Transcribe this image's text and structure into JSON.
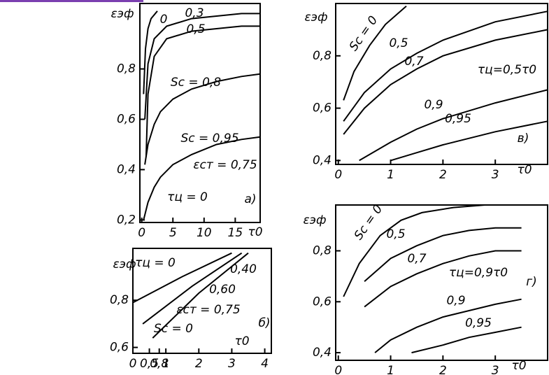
{
  "chart_data": [
    {
      "type": "line",
      "panel_label": "а)",
      "y_label": "εэф",
      "x_label": "τ0",
      "xlim": [
        -0.3,
        19
      ],
      "ylim": [
        0.19,
        1.06
      ],
      "xticks": [
        0,
        5,
        10,
        15
      ],
      "yticks": [
        {
          "value": 0.2,
          "label": "0,2"
        },
        {
          "value": 0.4,
          "label": "0,4"
        },
        {
          "value": 0.6,
          "label": "0,6"
        },
        {
          "value": 0.8,
          "label": "0,8"
        }
      ],
      "series": [
        {
          "name": "0",
          "color": "#000",
          "x": [
            0.3,
            0.6,
            1,
            1.5,
            2.5
          ],
          "values": [
            0.7,
            0.88,
            0.96,
            1.0,
            1.03
          ]
        },
        {
          "name": "0,3",
          "color": "#000",
          "x": [
            0.5,
            1,
            2,
            4,
            8,
            12,
            16,
            19
          ],
          "values": [
            0.6,
            0.82,
            0.92,
            0.97,
            1.0,
            1.01,
            1.02,
            1.02
          ]
        },
        {
          "name": "0,5",
          "color": "#000",
          "x": [
            0.7,
            1,
            2,
            4,
            8,
            12,
            16,
            19
          ],
          "values": [
            0.45,
            0.7,
            0.85,
            0.92,
            0.95,
            0.96,
            0.97,
            0.97
          ]
        },
        {
          "name": "Sc = 0,8",
          "color": "#000",
          "x": [
            0.5,
            1,
            2,
            3,
            5,
            8,
            12,
            16,
            19
          ],
          "values": [
            0.42,
            0.5,
            0.58,
            0.63,
            0.68,
            0.72,
            0.75,
            0.77,
            0.78
          ]
        },
        {
          "name": "Sc = 0,95",
          "color": "#000",
          "x": [
            0.3,
            1,
            2,
            3,
            5,
            8,
            12,
            16,
            19
          ],
          "values": [
            0.2,
            0.27,
            0.33,
            0.37,
            0.42,
            0.46,
            0.5,
            0.52,
            0.53
          ]
        }
      ],
      "annotations": [
        "εст = 0,75",
        "τц = 0"
      ]
    },
    {
      "type": "line",
      "panel_label": "б)",
      "y_label": "εэф",
      "x_label": "τ0",
      "xlim": [
        0,
        4.2
      ],
      "ylim": [
        0.575,
        1.02
      ],
      "xticks": [
        0,
        {
          "value": 0.5,
          "label": "0,5"
        },
        {
          "value": 0.8,
          "label": "0,8"
        },
        1,
        2,
        3,
        4
      ],
      "yticks": [
        {
          "value": 0.6,
          "label": "0,6"
        },
        {
          "value": 0.8,
          "label": "0,8"
        }
      ],
      "series": [
        {
          "name": "τц = 0",
          "color": "#000",
          "x": [
            0,
            1.5,
            3.0
          ],
          "values": [
            0.79,
            0.9,
            1.0
          ]
        },
        {
          "name": "0,40",
          "color": "#000",
          "x": [
            0.3,
            1.8,
            3.3
          ],
          "values": [
            0.7,
            0.86,
            1.0
          ]
        },
        {
          "name": "0,60",
          "color": "#000",
          "x": [
            0.6,
            2.0,
            3.5
          ],
          "values": [
            0.64,
            0.83,
            1.0
          ]
        }
      ],
      "annotations": [
        "εст = 0,75",
        "Sc = 0"
      ]
    },
    {
      "type": "line",
      "panel_label": "в)",
      "y_label": "εэф",
      "x_label": "τ0",
      "xlim": [
        -0.05,
        4.0
      ],
      "ylim": [
        0.385,
        1.0
      ],
      "xticks": [
        0,
        1,
        2,
        3
      ],
      "yticks": [
        {
          "value": 0.4,
          "label": "0,4"
        },
        {
          "value": 0.6,
          "label": "0,6"
        },
        {
          "value": 0.8,
          "label": "0,8"
        }
      ],
      "series": [
        {
          "name": "Sc = 0",
          "color": "#000",
          "x": [
            0.1,
            0.3,
            0.6,
            0.9,
            1.3
          ],
          "values": [
            0.63,
            0.74,
            0.84,
            0.92,
            0.99
          ]
        },
        {
          "name": "0,5",
          "color": "#000",
          "x": [
            0.1,
            0.5,
            1,
            1.5,
            2,
            3,
            4
          ],
          "values": [
            0.55,
            0.66,
            0.75,
            0.81,
            0.86,
            0.93,
            0.97
          ]
        },
        {
          "name": "0,7",
          "color": "#000",
          "x": [
            0.1,
            0.5,
            1,
            1.5,
            2,
            3,
            4
          ],
          "values": [
            0.5,
            0.6,
            0.69,
            0.75,
            0.8,
            0.86,
            0.9
          ]
        },
        {
          "name": "0,9",
          "color": "#000",
          "x": [
            0.4,
            1,
            1.5,
            2,
            3,
            4
          ],
          "values": [
            0.4,
            0.47,
            0.52,
            0.56,
            0.62,
            0.67
          ]
        },
        {
          "name": "0,95",
          "color": "#000",
          "x": [
            1,
            1.5,
            2,
            3,
            4
          ],
          "values": [
            0.4,
            0.43,
            0.46,
            0.51,
            0.55
          ]
        }
      ],
      "annotations": [
        "τц=0,5τ0"
      ]
    },
    {
      "type": "line",
      "panel_label": "г)",
      "y_label": "εэф",
      "x_label": "τ0",
      "xlim": [
        -0.05,
        4.0
      ],
      "ylim": [
        0.37,
        0.98
      ],
      "xticks": [
        0,
        1,
        2,
        3
      ],
      "yticks": [
        {
          "value": 0.4,
          "label": "0,4"
        },
        {
          "value": 0.6,
          "label": "0,6"
        },
        {
          "value": 0.8,
          "label": "0,8"
        }
      ],
      "series": [
        {
          "name": "Sc = 0",
          "color": "#000",
          "x": [
            0.1,
            0.4,
            0.8,
            1.2,
            1.6,
            2.2,
            2.8
          ],
          "values": [
            0.62,
            0.75,
            0.86,
            0.92,
            0.95,
            0.97,
            0.98
          ]
        },
        {
          "name": "0,5",
          "color": "#000",
          "x": [
            0.5,
            1,
            1.5,
            2,
            2.5,
            3,
            3.5
          ],
          "values": [
            0.68,
            0.77,
            0.82,
            0.86,
            0.88,
            0.89,
            0.89
          ]
        },
        {
          "name": "0,7",
          "color": "#000",
          "x": [
            0.5,
            1,
            1.5,
            2,
            2.5,
            3,
            3.5
          ],
          "values": [
            0.58,
            0.66,
            0.71,
            0.75,
            0.78,
            0.8,
            0.8
          ]
        },
        {
          "name": "0,9",
          "color": "#000",
          "x": [
            0.7,
            1,
            1.5,
            2,
            3,
            3.5
          ],
          "values": [
            0.4,
            0.45,
            0.5,
            0.54,
            0.59,
            0.61
          ]
        },
        {
          "name": "0,95",
          "color": "#000",
          "x": [
            1.4,
            2,
            2.5,
            3,
            3.5
          ],
          "values": [
            0.4,
            0.43,
            0.46,
            0.48,
            0.5
          ]
        }
      ],
      "annotations": [
        "τц=0,9τ0"
      ]
    }
  ]
}
